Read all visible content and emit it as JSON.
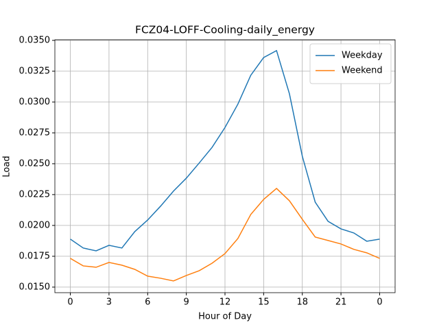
{
  "chart_data": {
    "type": "line",
    "title": "FCZ04-LOFF-Cooling-daily_energy",
    "x_label": "Hour of Day",
    "y_label": "Load",
    "x": [
      0,
      1,
      2,
      3,
      4,
      5,
      6,
      7,
      8,
      9,
      10,
      11,
      12,
      13,
      14,
      15,
      16,
      17,
      18,
      19,
      20,
      21,
      22,
      23,
      24
    ],
    "series": [
      {
        "name": "Weekday",
        "color": "#1f77b4",
        "values": [
          0.01889,
          0.01817,
          0.01794,
          0.01839,
          0.01817,
          0.0195,
          0.02044,
          0.02156,
          0.02278,
          0.02383,
          0.02506,
          0.02633,
          0.02794,
          0.02983,
          0.03217,
          0.03361,
          0.03417,
          0.03067,
          0.02561,
          0.02189,
          0.02033,
          0.01972,
          0.01939,
          0.01872,
          0.01889
        ]
      },
      {
        "name": "Weekend",
        "color": "#ff7f0e",
        "values": [
          0.01733,
          0.01672,
          0.01661,
          0.017,
          0.01678,
          0.01644,
          0.01589,
          0.01572,
          0.0155,
          0.01594,
          0.01633,
          0.01694,
          0.01772,
          0.01894,
          0.02089,
          0.02211,
          0.023,
          0.022,
          0.0205,
          0.01906,
          0.01878,
          0.0185,
          0.01806,
          0.01778,
          0.01733
        ]
      }
    ],
    "xlim": [
      -1.2,
      25.2
    ],
    "xticks": [
      0,
      3,
      6,
      9,
      12,
      15,
      18,
      21,
      {
        "value": 24,
        "label": "0"
      }
    ],
    "ylim": [
      0.01455,
      0.03505
    ],
    "yticks": [
      {
        "value": 0.015,
        "label": "0.0150"
      },
      {
        "value": 0.0175,
        "label": "0.0175"
      },
      {
        "value": 0.02,
        "label": "0.0200"
      },
      {
        "value": 0.0225,
        "label": "0.0225"
      },
      {
        "value": 0.025,
        "label": "0.0250"
      },
      {
        "value": 0.0275,
        "label": "0.0275"
      },
      {
        "value": 0.03,
        "label": "0.0300"
      },
      {
        "value": 0.0325,
        "label": "0.0325"
      },
      {
        "value": 0.035,
        "label": "0.0350"
      }
    ],
    "grid": true,
    "legend_position": "upper-right"
  }
}
